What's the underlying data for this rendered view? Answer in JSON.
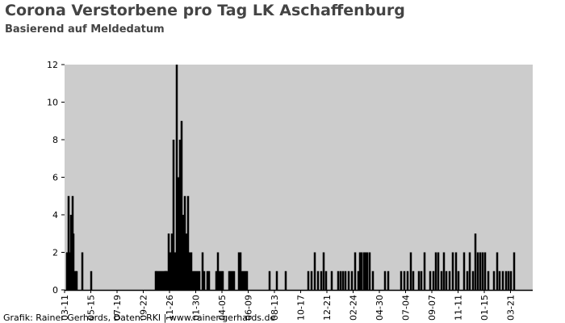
{
  "chart_data": {
    "type": "bar",
    "title": "Corona Verstorbene pro Tag LK Aschaffenburg",
    "subtitle": "Basierend auf Meldedatum",
    "footer": "Grafik: Rainer Gerhards, Daten: RKI | www.rainer-gerhards.de",
    "color": "#000000",
    "background": "#cccccc",
    "x": [
      6,
      8,
      10,
      12,
      14,
      16,
      18,
      20,
      22,
      24,
      28,
      30,
      44,
      66,
      226,
      228,
      232,
      236,
      240,
      244,
      248,
      250,
      252,
      254,
      258,
      262,
      266,
      270,
      274,
      278,
      282,
      286,
      290,
      294,
      298,
      302,
      306,
      310,
      314,
      318,
      322,
      326,
      330,
      334,
      342,
      346,
      354,
      358,
      376,
      380,
      384,
      388,
      392,
      408,
      412,
      416,
      420,
      432,
      436,
      440,
      444,
      448,
      452,
      508,
      526,
      548,
      604,
      612,
      620,
      628,
      636,
      642,
      648,
      662,
      678,
      684,
      690,
      696,
      704,
      712,
      720,
      728,
      732,
      736,
      742,
      746,
      750,
      756,
      764,
      794,
      802,
      834,
      842,
      850,
      858,
      864,
      878,
      884,
      892,
      906,
      914,
      920,
      926,
      934,
      940,
      946,
      954,
      962,
      970,
      976,
      990,
      998,
      1004,
      1012,
      1018,
      1024,
      1030,
      1036,
      1042,
      1050,
      1064,
      1072,
      1078,
      1086,
      1094,
      1100,
      1106,
      1114
    ],
    "values": [
      2,
      2,
      5,
      2,
      2,
      4,
      4,
      5,
      3,
      1,
      1,
      1,
      2,
      1,
      1,
      1,
      1,
      1,
      1,
      1,
      1,
      1,
      1,
      1,
      3,
      2,
      3,
      8,
      2,
      12,
      6,
      8,
      9,
      4,
      5,
      3,
      5,
      2,
      2,
      1,
      1,
      1,
      1,
      1,
      2,
      1,
      1,
      1,
      1,
      2,
      1,
      1,
      1,
      1,
      1,
      1,
      1,
      2,
      2,
      1,
      1,
      1,
      1,
      1,
      1,
      1,
      1,
      1,
      2,
      1,
      1,
      2,
      1,
      1,
      1,
      1,
      1,
      1,
      1,
      1,
      2,
      1,
      2,
      2,
      2,
      2,
      2,
      2,
      1,
      1,
      1,
      1,
      1,
      1,
      2,
      1,
      1,
      1,
      2,
      1,
      1,
      2,
      2,
      1,
      2,
      1,
      1,
      2,
      2,
      1,
      2,
      1,
      2,
      1,
      3,
      2,
      2,
      2,
      2,
      1,
      1,
      2,
      1,
      1,
      1,
      1,
      1,
      2
    ],
    "xlim": [
      0,
      1160
    ],
    "xticks": [
      {
        "value": 0,
        "label": "03-11"
      },
      {
        "value": 65,
        "label": "05-15"
      },
      {
        "value": 130,
        "label": "07-19"
      },
      {
        "value": 195,
        "label": "09-22"
      },
      {
        "value": 260,
        "label": "11-26"
      },
      {
        "value": 325,
        "label": "01-30"
      },
      {
        "value": 390,
        "label": "04-05"
      },
      {
        "value": 455,
        "label": "06-09"
      },
      {
        "value": 520,
        "label": "08-13"
      },
      {
        "value": 585,
        "label": "10-17"
      },
      {
        "value": 650,
        "label": "12-21"
      },
      {
        "value": 715,
        "label": "02-24"
      },
      {
        "value": 780,
        "label": "04-30"
      },
      {
        "value": 845,
        "label": "07-04"
      },
      {
        "value": 910,
        "label": "09-07"
      },
      {
        "value": 975,
        "label": "11-11"
      },
      {
        "value": 1040,
        "label": "01-15"
      },
      {
        "value": 1105,
        "label": "03-21"
      }
    ],
    "ylim": [
      0,
      12
    ],
    "yticks": [
      0,
      2,
      4,
      6,
      8,
      10,
      12
    ]
  }
}
